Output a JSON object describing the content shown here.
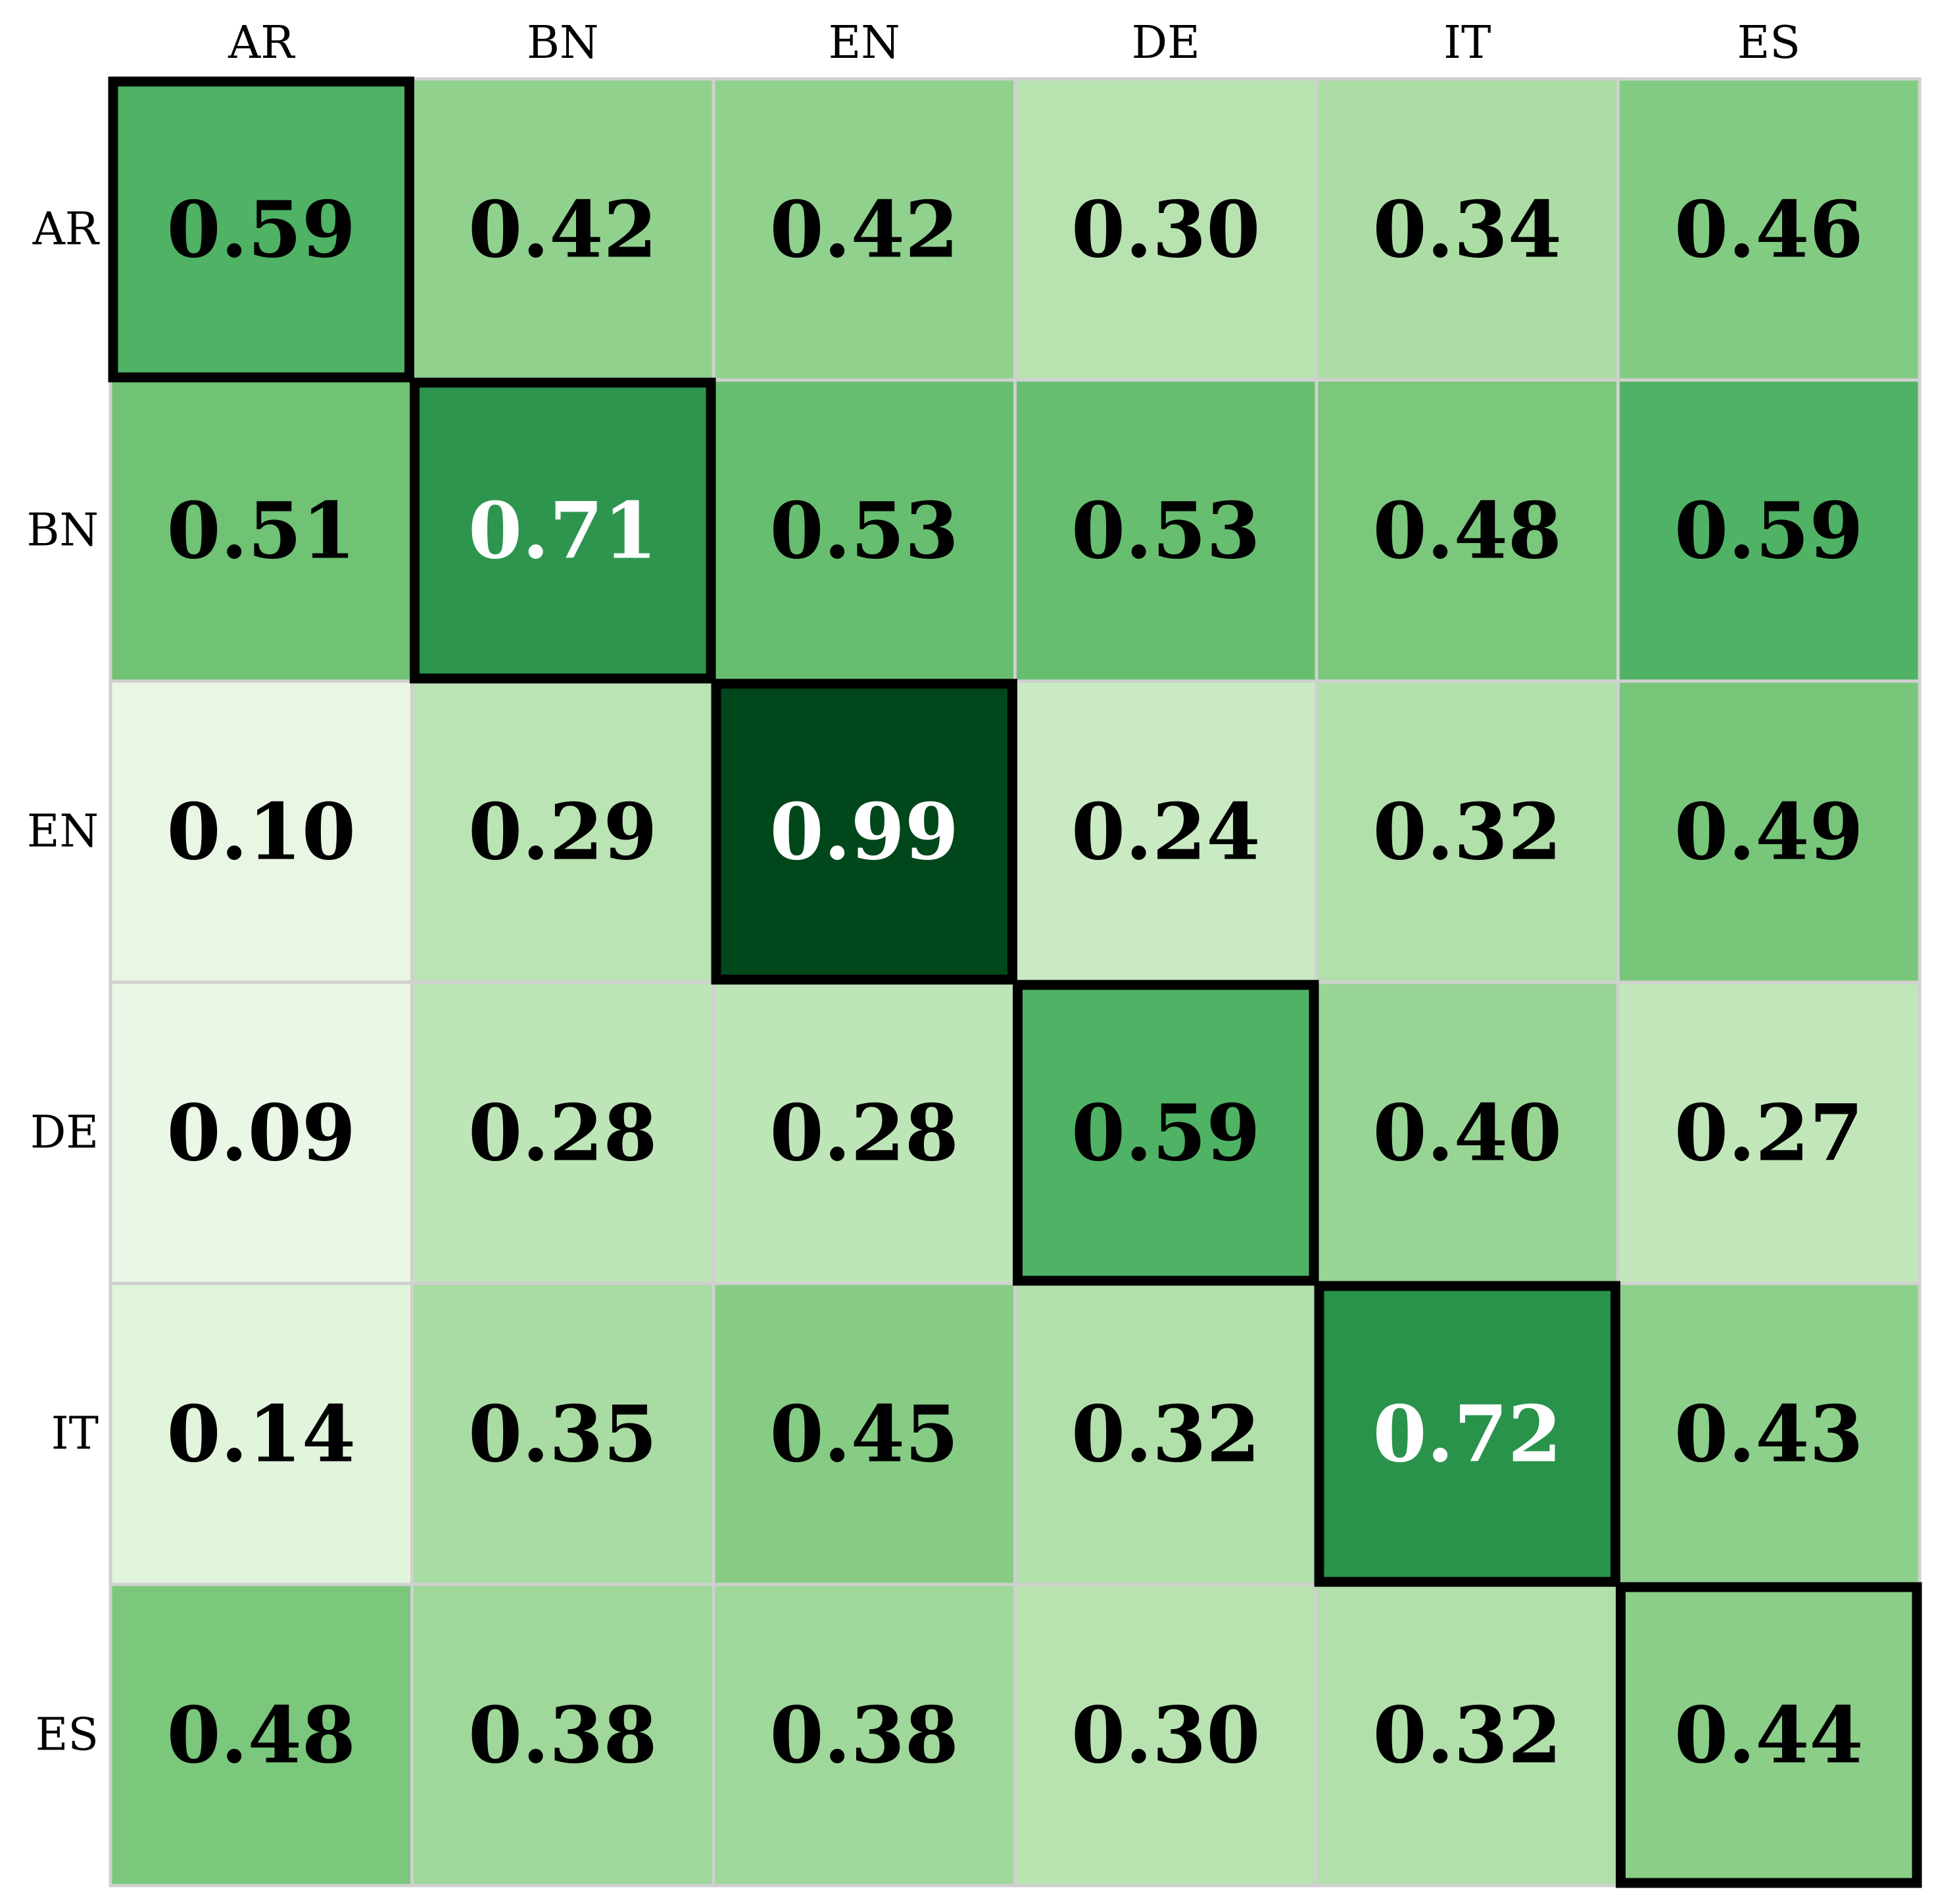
{
  "chart_data": {
    "type": "heatmap",
    "title": "",
    "xlabel": "",
    "ylabel": "",
    "x_categories": [
      "AR",
      "BN",
      "EN",
      "DE",
      "IT",
      "ES"
    ],
    "y_categories": [
      "AR",
      "BN",
      "EN",
      "DE",
      "IT",
      "ES"
    ],
    "values": [
      [
        0.59,
        0.42,
        0.42,
        0.3,
        0.34,
        0.46
      ],
      [
        0.51,
        0.71,
        0.53,
        0.53,
        0.48,
        0.59
      ],
      [
        0.1,
        0.29,
        0.99,
        0.24,
        0.32,
        0.49
      ],
      [
        0.09,
        0.28,
        0.28,
        0.59,
        0.4,
        0.27
      ],
      [
        0.14,
        0.35,
        0.45,
        0.32,
        0.72,
        0.43
      ],
      [
        0.48,
        0.38,
        0.38,
        0.3,
        0.32,
        0.44
      ]
    ],
    "value_format": "0.00",
    "x_axis_position": "top",
    "highlighted_cells": "diagonal",
    "colormap": "Greens",
    "color_range": [
      0.0,
      1.0
    ],
    "colors": {
      "cell_border": "#d0d0d0",
      "highlight_border": "#000000",
      "text_dark": "#000000",
      "text_light": "#ffffff"
    }
  }
}
